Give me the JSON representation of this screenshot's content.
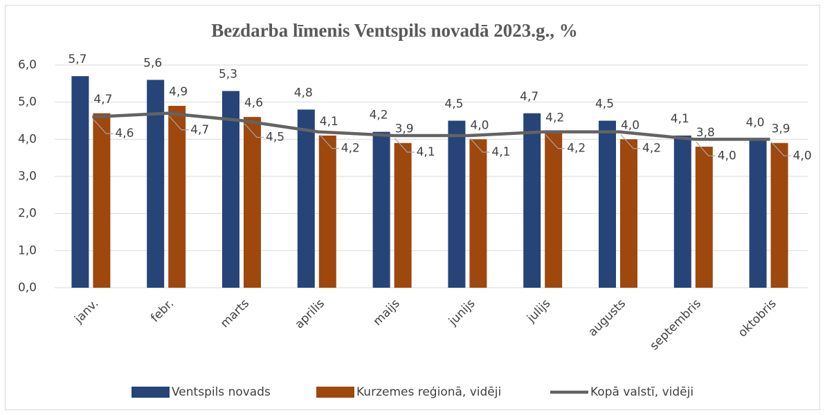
{
  "chart_data": {
    "type": "bar",
    "title": "Bezdarba līmenis Ventspils novadā 2023.g., %",
    "categories": [
      "janv.",
      "febr.",
      "marts",
      "aprilis",
      "maijs",
      "junijs",
      "julijs",
      "augusts",
      "septembris",
      "oktobris"
    ],
    "series": [
      {
        "name": "Ventspils novads",
        "color": "#264478",
        "type": "bar",
        "values": [
          5.7,
          5.6,
          5.3,
          4.8,
          4.2,
          4.5,
          4.7,
          4.5,
          4.1,
          4.0
        ],
        "value_labels": [
          "5,7",
          "5,6",
          "5,3",
          "4,8",
          "4,2",
          "4,5",
          "4,7",
          "4,5",
          "4,1",
          "4,0"
        ]
      },
      {
        "name": "Kurzemes reģionā, vidēji",
        "color": "#9e480e",
        "type": "bar",
        "values": [
          4.7,
          4.9,
          4.6,
          4.1,
          3.9,
          4.0,
          4.2,
          4.0,
          3.8,
          3.9
        ],
        "value_labels": [
          "4,7",
          "4,9",
          "4,6",
          "4,1",
          "3,9",
          "4,0",
          "4,2",
          "4,0",
          "3,8",
          "3,9"
        ]
      },
      {
        "name": "Kopā valstī, vidēji",
        "color": "#636363",
        "type": "line",
        "values": [
          4.6,
          4.7,
          4.5,
          4.2,
          4.1,
          4.1,
          4.2,
          4.2,
          4.0,
          4.0
        ],
        "value_labels": [
          "4,6",
          "4,7",
          "4,5",
          "4,2",
          "4,1",
          "4,1",
          "4,2",
          "4,2",
          "4,0",
          "4,0"
        ]
      }
    ],
    "ylim": [
      0,
      6
    ],
    "yticks": [
      {
        "value": 0,
        "label": "0,0"
      },
      {
        "value": 1,
        "label": "1,0"
      },
      {
        "value": 2,
        "label": "2,0"
      },
      {
        "value": 3,
        "label": "3,0"
      },
      {
        "value": 4,
        "label": "4,0"
      },
      {
        "value": 5,
        "label": "5,0"
      },
      {
        "value": 6,
        "label": "6,0"
      }
    ],
    "grid": true,
    "legend": "bottom"
  }
}
